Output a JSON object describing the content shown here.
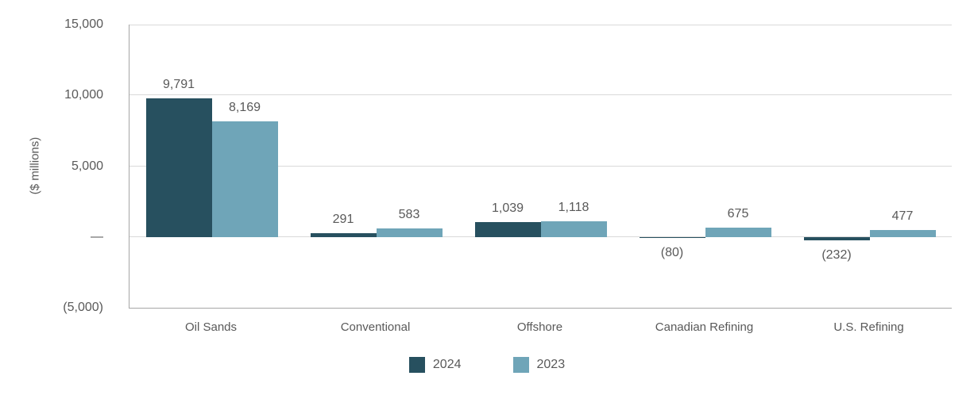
{
  "chart_data": {
    "type": "bar",
    "title": "",
    "xlabel": "",
    "ylabel": "($ millions)",
    "categories": [
      "Oil Sands",
      "Conventional",
      "Offshore",
      "Canadian Refining",
      "U.S. Refining"
    ],
    "series": [
      {
        "name": "2024",
        "color": "#27505F",
        "values": [
          9791,
          291,
          1039,
          -80,
          -232
        ],
        "labels": [
          "9,791",
          "291",
          "1,039",
          "(80)",
          "(232)"
        ]
      },
      {
        "name": "2023",
        "color": "#6FA5B8",
        "values": [
          8169,
          583,
          1118,
          675,
          477
        ],
        "labels": [
          "8,169",
          "583",
          "1,118",
          "675",
          "477"
        ]
      }
    ],
    "ylim": [
      -5000,
      15000
    ],
    "yticks": [
      {
        "value": 15000,
        "label": "15,000"
      },
      {
        "value": 10000,
        "label": "10,000"
      },
      {
        "value": 5000,
        "label": "5,000"
      },
      {
        "value": 0,
        "label": "—"
      },
      {
        "value": -5000,
        "label": "(5,000)"
      }
    ],
    "grid": "horizontal",
    "legend_position": "bottom"
  },
  "colors": {
    "text": "#595959",
    "gridline": "#D9D9D9",
    "axis": "#A6A6A6",
    "background": "#FFFFFF"
  }
}
